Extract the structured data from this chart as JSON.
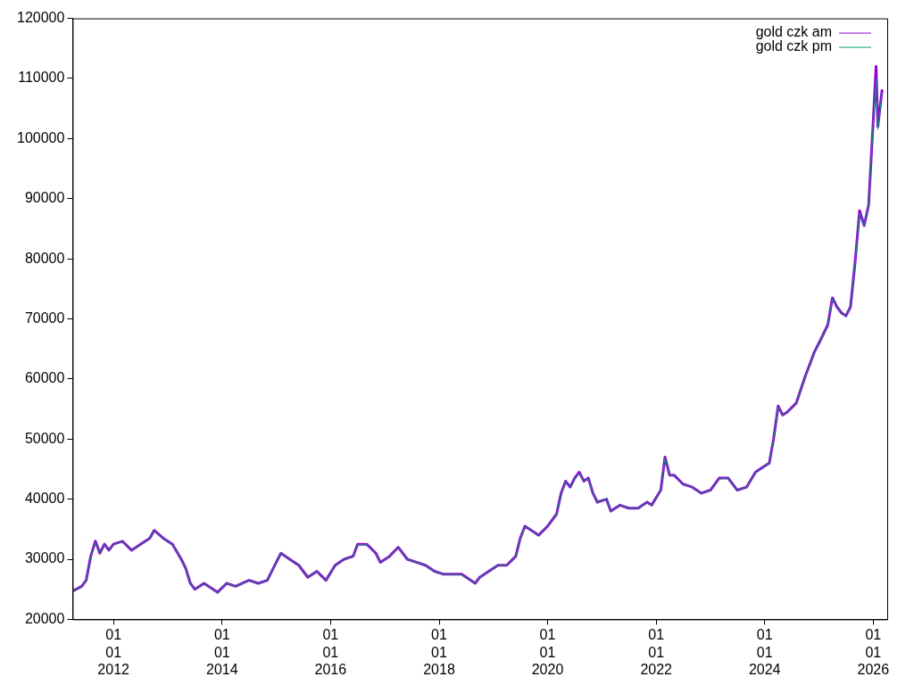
{
  "chart_data": {
    "type": "line",
    "xlim": [
      "2011-04-01",
      "2026-04-05"
    ],
    "ylim": [
      20000,
      120000
    ],
    "yticks": [
      20000,
      30000,
      40000,
      50000,
      60000,
      70000,
      80000,
      90000,
      100000,
      110000,
      120000
    ],
    "xticks": [
      {
        "value": "2012-01-01",
        "label": "01\n01\n2012"
      },
      {
        "value": "2014-01-01",
        "label": "01\n01\n2014"
      },
      {
        "value": "2016-01-01",
        "label": "01\n01\n2016"
      },
      {
        "value": "2018-01-01",
        "label": "01\n01\n2018"
      },
      {
        "value": "2020-01-01",
        "label": "01\n01\n2020"
      },
      {
        "value": "2022-01-01",
        "label": "01\n01\n2022"
      },
      {
        "value": "2024-01-01",
        "label": "01\n01\n2024"
      },
      {
        "value": "2026-01-01",
        "label": "01\n01\n2026"
      }
    ],
    "x": [
      "2011-04-01",
      "2011-06-01",
      "2011-07-01",
      "2011-08-01",
      "2011-09-01",
      "2011-10-01",
      "2011-11-01",
      "2011-12-01",
      "2012-01-01",
      "2012-03-01",
      "2012-05-01",
      "2012-07-01",
      "2012-09-01",
      "2012-10-01",
      "2012-12-01",
      "2013-02-01",
      "2013-04-01",
      "2013-05-01",
      "2013-06-01",
      "2013-07-01",
      "2013-09-01",
      "2013-12-01",
      "2014-02-01",
      "2014-04-01",
      "2014-07-01",
      "2014-09-01",
      "2014-11-01",
      "2015-01-01",
      "2015-02-01",
      "2015-04-01",
      "2015-06-01",
      "2015-08-01",
      "2015-10-01",
      "2015-12-01",
      "2016-02-01",
      "2016-04-01",
      "2016-06-01",
      "2016-07-01",
      "2016-09-01",
      "2016-11-01",
      "2016-12-01",
      "2017-02-01",
      "2017-04-01",
      "2017-06-01",
      "2017-08-01",
      "2017-10-01",
      "2017-12-01",
      "2018-02-01",
      "2018-04-01",
      "2018-06-01",
      "2018-08-01",
      "2018-09-01",
      "2018-10-01",
      "2018-12-01",
      "2019-02-01",
      "2019-04-01",
      "2019-06-01",
      "2019-07-01",
      "2019-08-01",
      "2019-09-01",
      "2019-11-01",
      "2020-01-01",
      "2020-03-01",
      "2020-04-01",
      "2020-05-01",
      "2020-06-01",
      "2020-07-01",
      "2020-08-01",
      "2020-09-01",
      "2020-10-01",
      "2020-11-01",
      "2020-12-01",
      "2021-02-01",
      "2021-03-01",
      "2021-05-01",
      "2021-07-01",
      "2021-09-01",
      "2021-11-01",
      "2021-12-01",
      "2022-02-01",
      "2022-03-01",
      "2022-04-01",
      "2022-05-01",
      "2022-07-01",
      "2022-09-01",
      "2022-11-01",
      "2023-01-01",
      "2023-03-01",
      "2023-05-01",
      "2023-07-01",
      "2023-09-01",
      "2023-11-01",
      "2024-01-01",
      "2024-02-01",
      "2024-03-01",
      "2024-04-01",
      "2024-05-01",
      "2024-06-01",
      "2024-08-01",
      "2024-10-01",
      "2024-11-01",
      "2024-12-01",
      "2025-01-01",
      "2025-03-01",
      "2025-04-01",
      "2025-05-01",
      "2025-06-01",
      "2025-07-01",
      "2025-08-01",
      "2025-09-01",
      "2025-10-01",
      "2025-11-01",
      "2025-12-01",
      "2026-01-01",
      "2026-01-20",
      "2026-02-01",
      "2026-03-01"
    ],
    "series": [
      {
        "name": "gold czk am",
        "color": "#9400d3",
        "values": [
          24700,
          25500,
          26500,
          30500,
          33000,
          31000,
          32500,
          31500,
          32500,
          33000,
          31500,
          32500,
          33500,
          34800,
          33500,
          32500,
          30000,
          28500,
          26000,
          25000,
          26000,
          24500,
          26000,
          25500,
          26500,
          26000,
          26500,
          29500,
          31000,
          30000,
          29000,
          27000,
          28000,
          26500,
          29000,
          30000,
          30500,
          32500,
          32500,
          31000,
          29500,
          30500,
          32000,
          30000,
          29500,
          29000,
          28000,
          27500,
          27500,
          27500,
          26500,
          26000,
          27000,
          28000,
          29000,
          29000,
          30500,
          33500,
          35500,
          35000,
          34000,
          35500,
          37500,
          41000,
          43000,
          42000,
          43500,
          44500,
          43000,
          43500,
          41000,
          39500,
          40000,
          38000,
          39000,
          38500,
          38500,
          39500,
          39000,
          41500,
          47000,
          44000,
          44000,
          42500,
          42000,
          41000,
          41500,
          43500,
          43500,
          41500,
          42000,
          44500,
          45500,
          46000,
          50000,
          55500,
          54000,
          54500,
          56000,
          60500,
          62500,
          64500,
          66000,
          69000,
          73500,
          72000,
          71000,
          70500,
          72000,
          79500,
          88000,
          85500,
          89000,
          103000,
          112000,
          102000,
          108000
        ]
      },
      {
        "name": "gold czk pm",
        "color": "#009e73",
        "values": [
          24700,
          25400,
          26500,
          30300,
          32800,
          31000,
          32400,
          31500,
          32400,
          33000,
          31500,
          32400,
          33400,
          34700,
          33500,
          32400,
          30000,
          28400,
          26000,
          25000,
          26000,
          24400,
          26000,
          25500,
          26400,
          26000,
          26500,
          29400,
          31000,
          30000,
          29000,
          27000,
          28000,
          26500,
          29000,
          30000,
          30400,
          32400,
          32500,
          31000,
          29500,
          30500,
          32000,
          30000,
          29500,
          29000,
          28000,
          27500,
          27500,
          27400,
          26500,
          26000,
          27000,
          28000,
          29000,
          29000,
          30400,
          33400,
          35400,
          35000,
          34000,
          35500,
          37400,
          40800,
          43000,
          42000,
          43400,
          44300,
          43000,
          43400,
          41000,
          39500,
          40000,
          38000,
          39000,
          38500,
          38500,
          39400,
          39000,
          41400,
          46800,
          44000,
          44000,
          42500,
          42000,
          41000,
          41500,
          43400,
          43500,
          41500,
          42000,
          44400,
          45500,
          46000,
          50000,
          55300,
          54000,
          54500,
          56000,
          60400,
          62400,
          64400,
          66000,
          69000,
          73300,
          72000,
          71000,
          70500,
          72000,
          79300,
          87500,
          85500,
          89000,
          102500,
          110000,
          101500,
          107500
        ]
      }
    ],
    "legend": "top right",
    "grid": false,
    "line_style": "solid",
    "marker": "none"
  }
}
